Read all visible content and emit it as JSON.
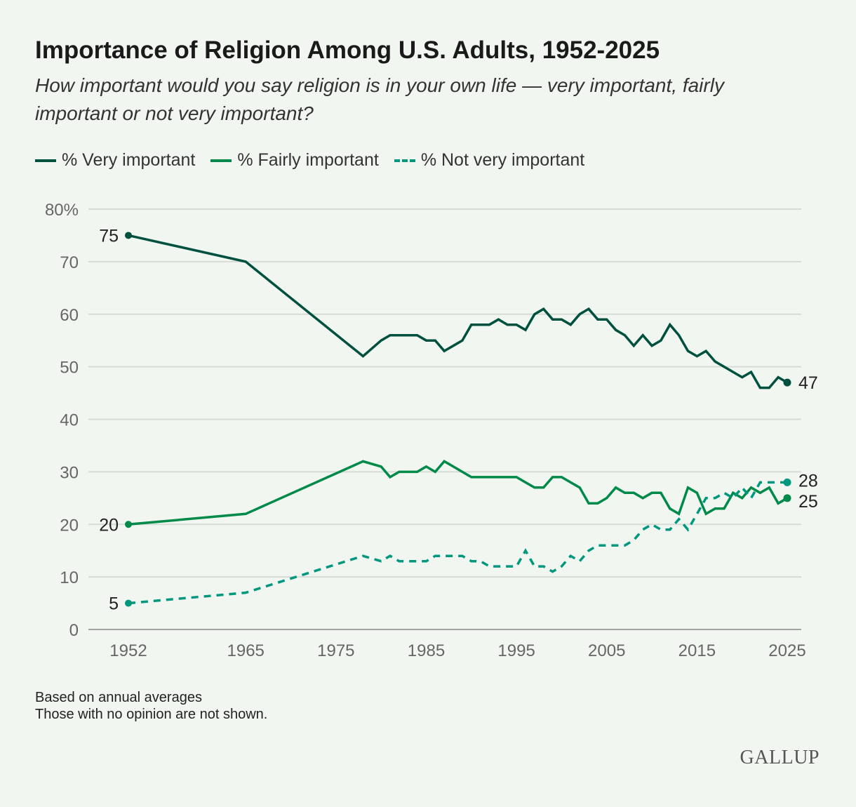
{
  "title": "Importance of Religion Among U.S. Adults, 1952-2025",
  "subtitle": "How important would you say religion is in your own life — very important, fairly important or not very important?",
  "notes": [
    "Based on annual averages",
    "Those with no opinion are not shown."
  ],
  "logo": "GALLUP",
  "chart_data": {
    "type": "line",
    "ylim": [
      0,
      80
    ],
    "xlim": [
      1952,
      2025
    ],
    "y_ticks": [
      "0",
      "10",
      "20",
      "30",
      "40",
      "50",
      "60",
      "70",
      "80%"
    ],
    "x_ticks": [
      "1952",
      "1965",
      "1975",
      "1985",
      "1995",
      "2005",
      "2015",
      "2025"
    ],
    "grid": "horizontal",
    "legend_placement": "top-left",
    "x": [
      1952,
      1965,
      1978,
      1980,
      1981,
      1982,
      1983,
      1984,
      1985,
      1986,
      1987,
      1988,
      1989,
      1990,
      1991,
      1992,
      1993,
      1994,
      1995,
      1996,
      1997,
      1998,
      1999,
      2000,
      2001,
      2002,
      2003,
      2004,
      2005,
      2006,
      2007,
      2008,
      2009,
      2010,
      2011,
      2012,
      2013,
      2014,
      2015,
      2016,
      2017,
      2018,
      2019,
      2020,
      2021,
      2022,
      2023,
      2024,
      2025
    ],
    "series": [
      {
        "name": "% Very important",
        "color": "#00503f",
        "style": "solid",
        "values": [
          75,
          70,
          52,
          55,
          56,
          56,
          56,
          56,
          55,
          55,
          53,
          54,
          55,
          58,
          58,
          58,
          59,
          58,
          58,
          57,
          60,
          61,
          59,
          59,
          58,
          60,
          61,
          59,
          59,
          57,
          56,
          54,
          56,
          54,
          55,
          58,
          56,
          53,
          52,
          53,
          51,
          50,
          49,
          48,
          49,
          46,
          46,
          48,
          47
        ],
        "start_label": "75",
        "end_label": "47"
      },
      {
        "name": "% Fairly important",
        "color": "#008a4a",
        "style": "solid",
        "values": [
          20,
          22,
          32,
          31,
          29,
          30,
          30,
          30,
          31,
          30,
          32,
          31,
          30,
          29,
          29,
          29,
          29,
          29,
          29,
          28,
          27,
          27,
          29,
          29,
          28,
          27,
          24,
          24,
          25,
          27,
          26,
          26,
          25,
          26,
          26,
          23,
          22,
          27,
          26,
          22,
          23,
          23,
          26,
          25,
          27,
          26,
          27,
          24,
          25
        ],
        "start_label": "20",
        "end_label": "25"
      },
      {
        "name": "% Not very important",
        "color": "#00977f",
        "style": "dashed",
        "values": [
          5,
          7,
          14,
          13,
          14,
          13,
          13,
          13,
          13,
          14,
          14,
          14,
          14,
          13,
          13,
          12,
          12,
          12,
          12,
          15,
          12,
          12,
          11,
          12,
          14,
          13,
          15,
          16,
          16,
          16,
          16,
          17,
          19,
          20,
          19,
          19,
          21,
          19,
          22,
          25,
          25,
          26,
          25,
          27,
          25,
          28,
          28,
          28,
          28
        ],
        "start_label": "5",
        "end_label": "28"
      }
    ]
  }
}
